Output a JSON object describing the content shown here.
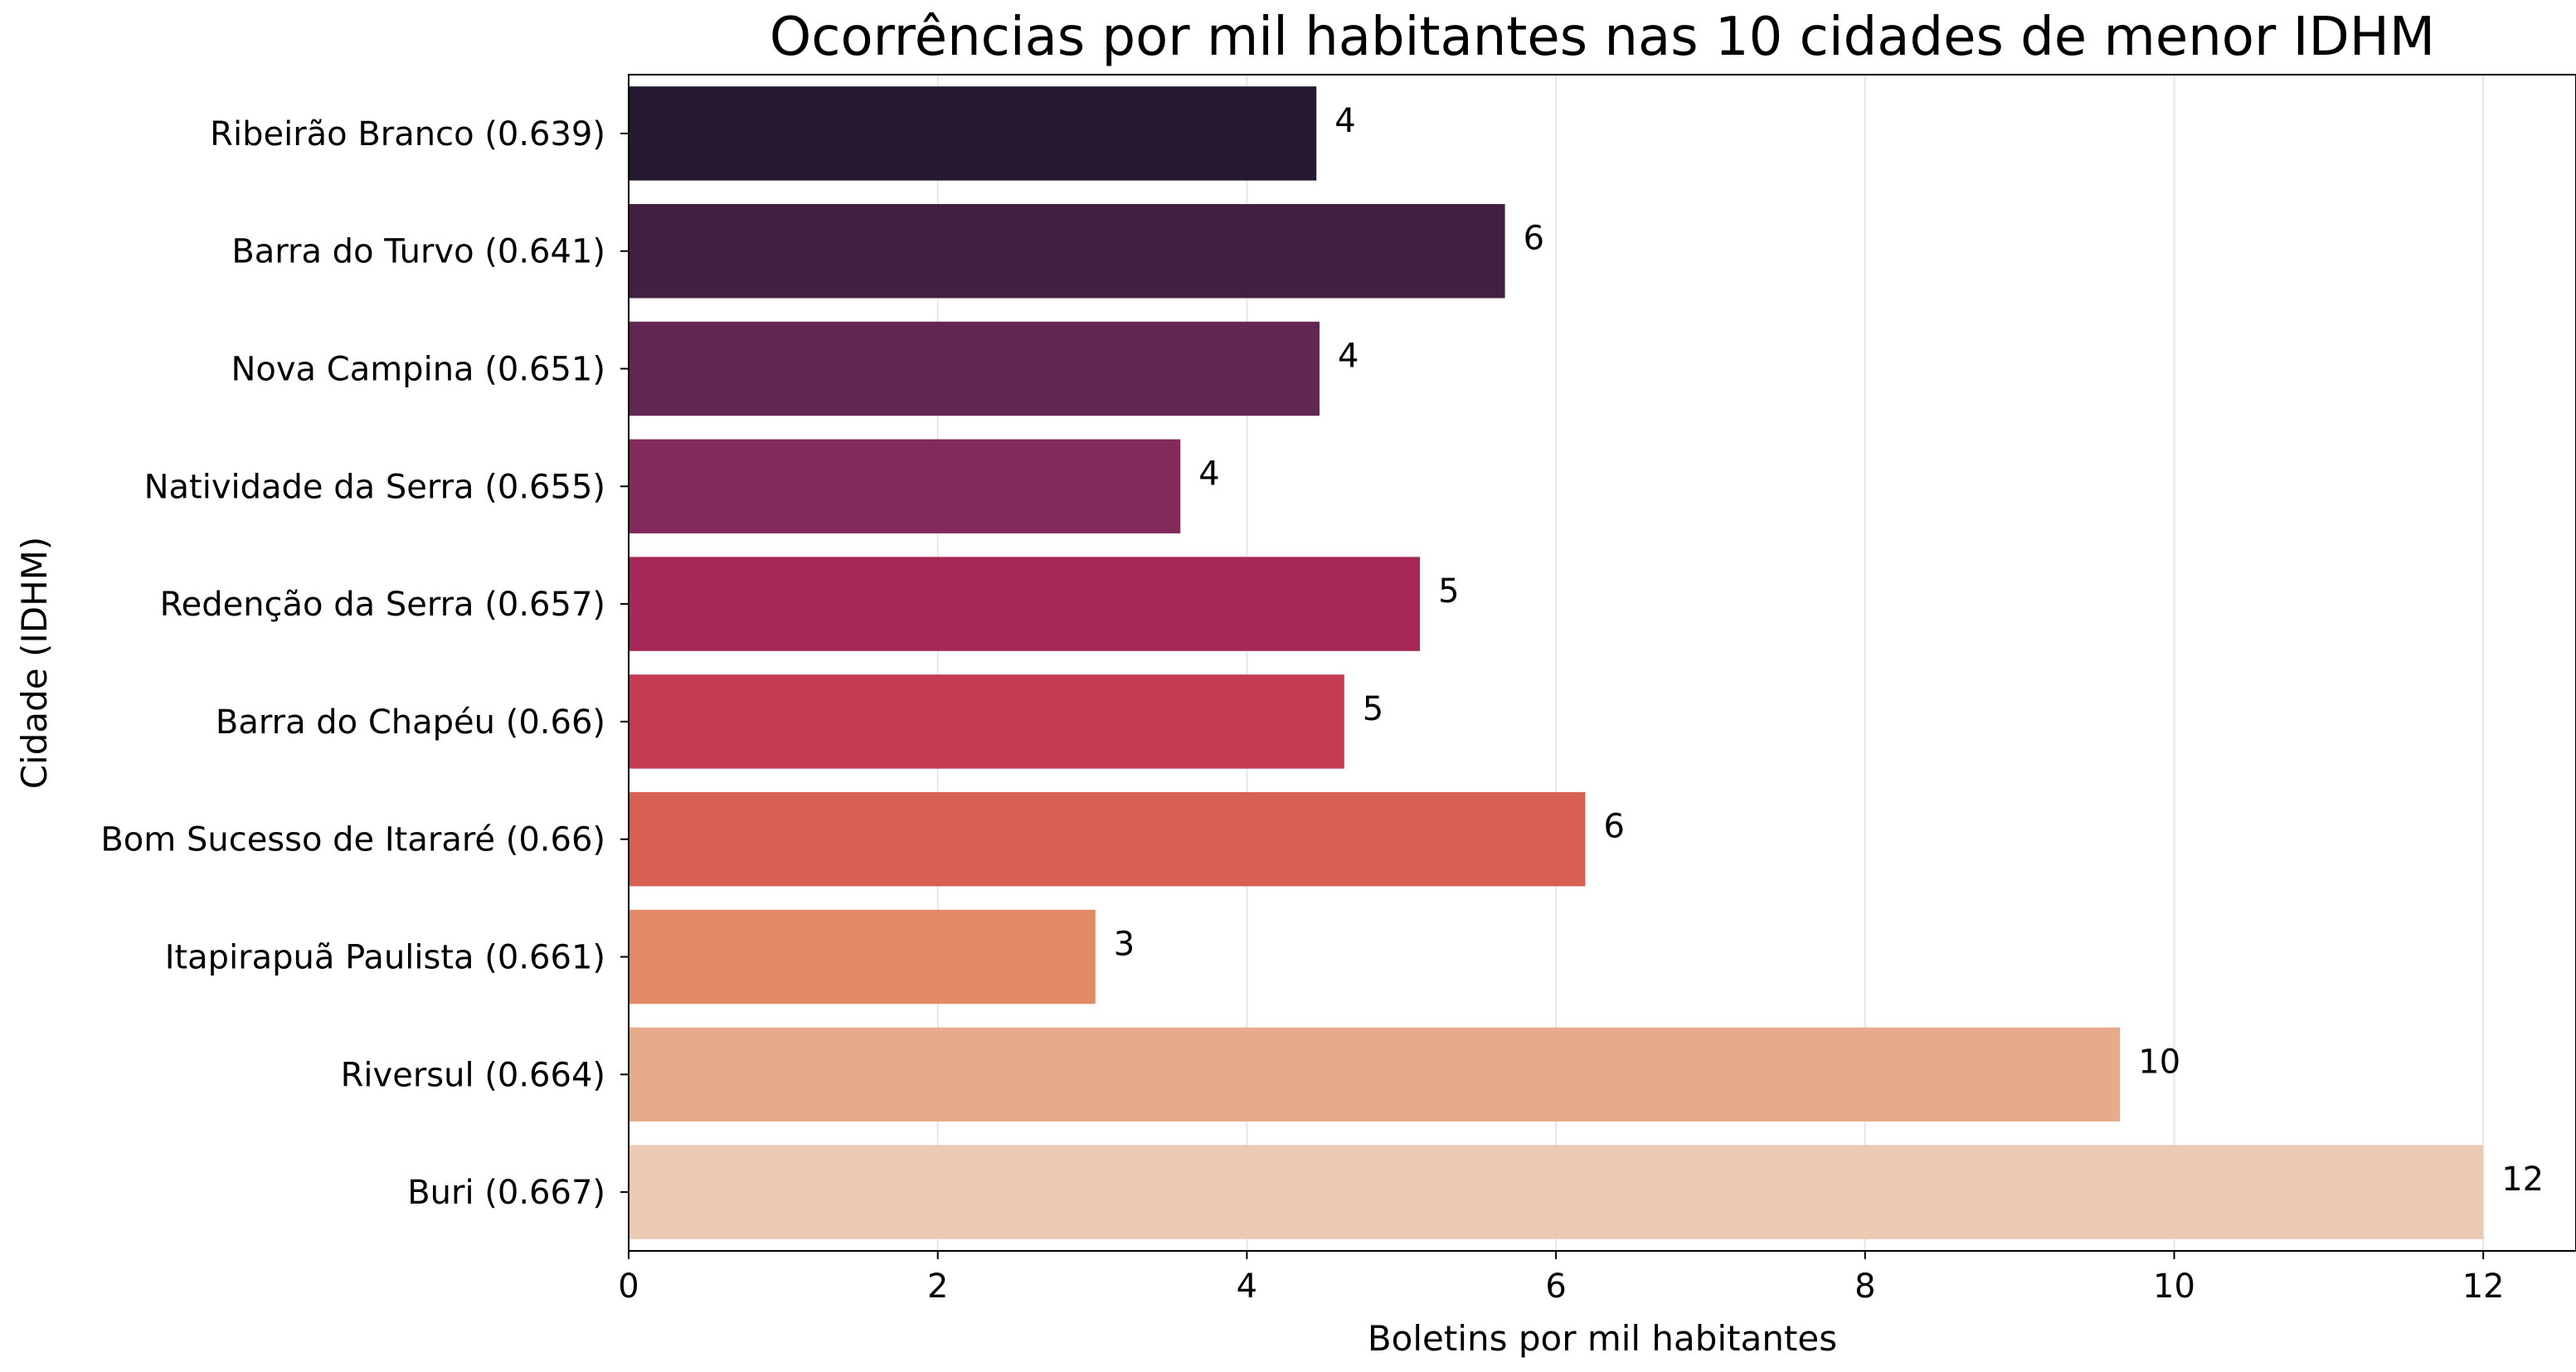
{
  "chart_data": {
    "type": "bar",
    "orientation": "horizontal",
    "title": "Ocorrências por mil habitantes nas 10 cidades de menor IDHM",
    "xlabel": "Boletins por mil habitantes",
    "ylabel": "Cidade (IDHM)",
    "xlim": [
      0,
      12.6
    ],
    "xticks": [
      "0",
      "2",
      "4",
      "6",
      "8",
      "10",
      "12"
    ],
    "grid": "x",
    "categories": [
      "Ribeirão Branco (0.639)",
      "Barra do Turvo (0.641)",
      "Nova Campina (0.651)",
      "Natividade da Serra (0.655)",
      "Redenção da Serra (0.657)",
      "Barra do Chapéu (0.66)",
      "Bom Sucesso de Itararé (0.66)",
      "Itapirapuã Paulista (0.661)",
      "Riversul (0.664)",
      "Buri (0.667)"
    ],
    "values": [
      4.45,
      5.67,
      4.47,
      3.57,
      5.12,
      4.63,
      6.19,
      3.02,
      9.65,
      12.0
    ],
    "data_labels": [
      "4",
      "6",
      "4",
      "4",
      "5",
      "5",
      "6",
      "3",
      "10",
      "12"
    ],
    "colors": [
      "#241930",
      "#412041",
      "#612752",
      "#84295b",
      "#a52859",
      "#c43c53",
      "#d86053",
      "#e28a68",
      "#e7aa8b",
      "#ecc9b3"
    ]
  }
}
